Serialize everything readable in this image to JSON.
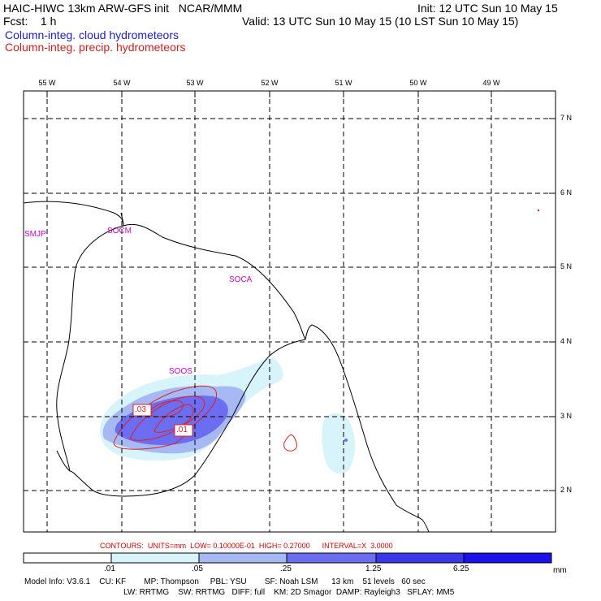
{
  "header": {
    "title": "HAIC-HIWC 13km ARW-GFS init   NCAR/MMM",
    "fcst": "Fcst:    1 h",
    "init": "Init: 12 UTC Sun 10 May 15",
    "valid": "Valid: 13 UTC Sun 10 May 15 (10 LST Sun 10 May 15)",
    "field1": "Column-integ. cloud hydrometeors",
    "field2": "Column-integ. precip. hydrometeors"
  },
  "colors": {
    "field1": "#2020cc",
    "field2": "#cc2020",
    "stations": "#cc00cc",
    "contour": "#dd2222",
    "fill_levels": [
      "#ffffff",
      "#d8f4fb",
      "#a7b9f2",
      "#6c6df0",
      "#3b36e9",
      "#1e10e8"
    ]
  },
  "map": {
    "lon_labels": [
      "55 W",
      "54 W",
      "53 W",
      "52 W",
      "51 W",
      "50 W",
      "49 W"
    ],
    "lat_labels": [
      "7 N",
      "6 N",
      "5 N",
      "4 N",
      "3 N",
      "2 N"
    ],
    "stations": [
      "SMJP",
      "SOCM",
      "SOCA",
      "SOOS"
    ],
    "contour_labels": [
      ".03",
      ".01"
    ]
  },
  "legend": {
    "contours": "CONTOURS:  UNITS=mm  LOW= 0.10000E-01  HIGH= 0.27000      INTERVAL=X  3.0000",
    "ticks": [
      ".01",
      ".05",
      ".25",
      "1.25",
      "6.25"
    ],
    "unit": "mm"
  },
  "model_info": {
    "line1": "Model Info: V3.6.1    CU: KF        MP: Thompson     PBL: YSU        SF: Noah LSM      13 km    51 levels   60 sec",
    "line2": "LW: RRTMG    SW: RRTMG   DIFF: full    KM: 2D Smagor  DAMP: Rayleigh3   SFLAY: MM5"
  }
}
